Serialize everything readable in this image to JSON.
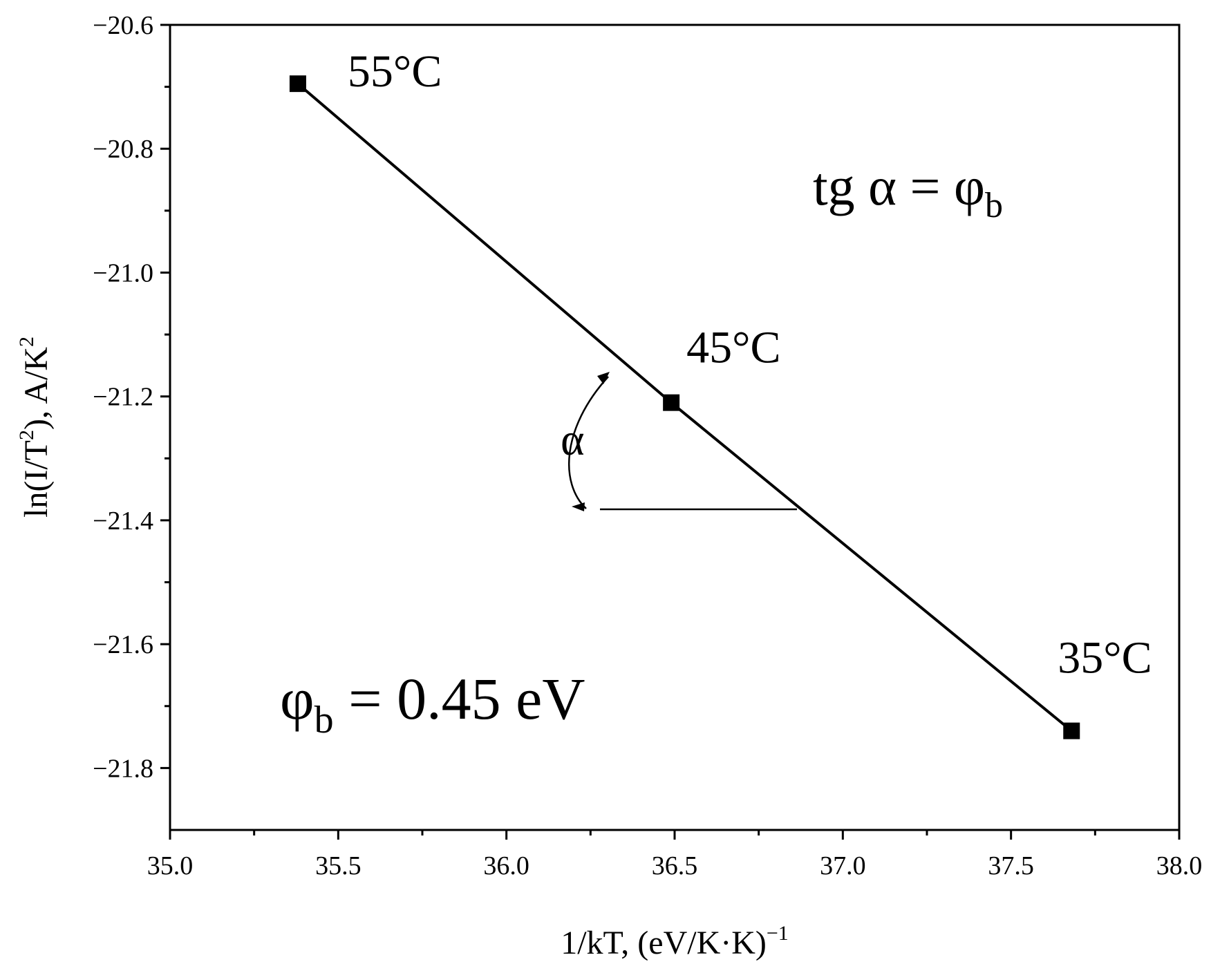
{
  "chart_data": {
    "type": "line",
    "xlabel": "1/kT, (eV/K·K)",
    "xlabel_sup": "−1",
    "ylabel": "ln(I/T",
    "ylabel_sup": "2",
    "ylabel_mid": "), A/K",
    "ylabel_sup2": "2",
    "xlim": [
      35.0,
      38.0
    ],
    "ylim": [
      -21.9,
      -20.6
    ],
    "xticks": [
      35.0,
      35.5,
      36.0,
      36.5,
      37.0,
      37.5,
      38.0
    ],
    "xtick_labels": [
      "35.0",
      "35.5",
      "36.0",
      "36.5",
      "37.0",
      "37.5",
      "38.0"
    ],
    "yticks": [
      -20.6,
      -20.8,
      -21.0,
      -21.2,
      -21.4,
      -21.6,
      -21.8
    ],
    "ytick_labels": [
      "−20.6",
      "−20.8",
      "−21.0",
      "−21.2",
      "−21.4",
      "−21.6",
      "−21.8"
    ],
    "grid": false,
    "series": [
      {
        "marker": "square",
        "color": "#000000",
        "points": [
          {
            "x": 35.38,
            "y": -20.695,
            "label": "55°C"
          },
          {
            "x": 36.49,
            "y": -21.21,
            "label": "45°C"
          },
          {
            "x": 37.68,
            "y": -21.74,
            "label": "35°C"
          }
        ]
      }
    ],
    "annotations": {
      "slope_formula": {
        "lhs": "tg α = φ",
        "sub": "b"
      },
      "barrier": {
        "phi": "φ",
        "sub": "b",
        "rhs": " = 0.45 eV"
      },
      "angle_symbol": "α"
    }
  }
}
